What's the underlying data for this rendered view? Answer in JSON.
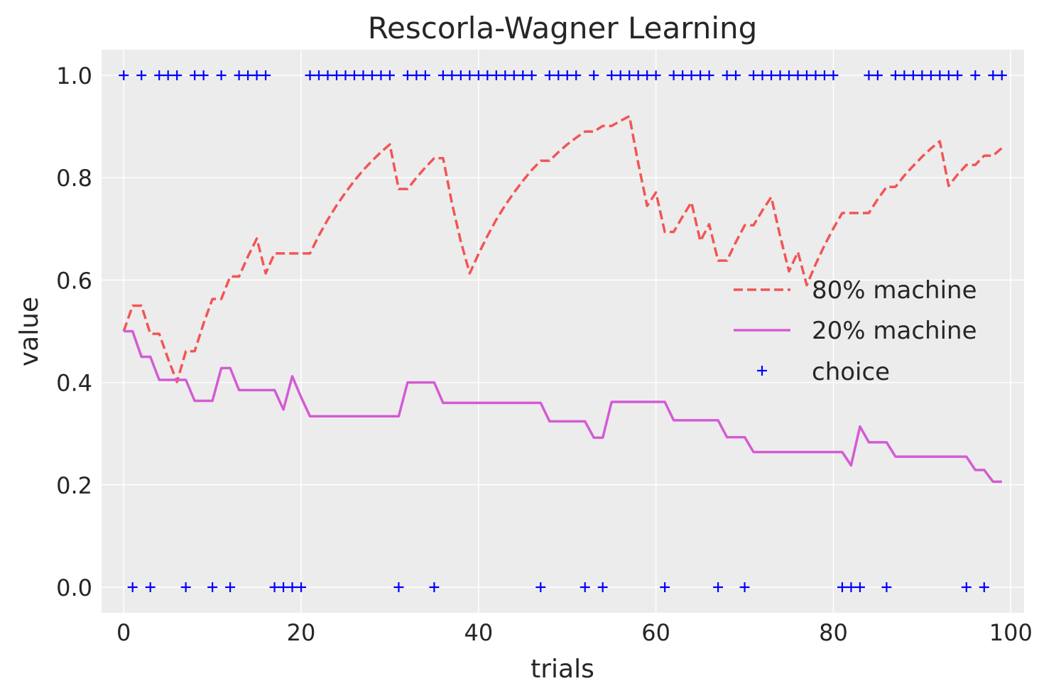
{
  "chart_data": {
    "type": "line",
    "title": "Rescorla-Wagner Learning",
    "xlabel": "trials",
    "ylabel": "value",
    "xlim": [
      -2.5,
      101.5
    ],
    "ylim": [
      -0.05,
      1.05
    ],
    "xticks": [
      0,
      20,
      40,
      60,
      80,
      100
    ],
    "yticks": [
      0.0,
      0.2,
      0.4,
      0.6,
      0.8,
      1.0
    ],
    "xtick_labels": [
      "0",
      "20",
      "40",
      "60",
      "80",
      "100"
    ],
    "ytick_labels": [
      "0.0",
      "0.2",
      "0.4",
      "0.6",
      "0.8",
      "1.0"
    ],
    "grid": true,
    "background": "#ececec",
    "legend_position": "center-right",
    "series": [
      {
        "name": "80% machine",
        "style": "dashed",
        "color": "#f25555",
        "x": [
          0,
          1,
          2,
          3,
          4,
          5,
          6,
          7,
          8,
          9,
          10,
          11,
          12,
          13,
          14,
          15,
          16,
          17,
          18,
          19,
          20,
          21,
          22,
          23,
          24,
          25,
          26,
          27,
          28,
          29,
          30,
          31,
          32,
          33,
          34,
          35,
          36,
          37,
          38,
          39,
          40,
          41,
          42,
          43,
          44,
          45,
          46,
          47,
          48,
          49,
          50,
          51,
          52,
          53,
          54,
          55,
          56,
          57,
          58,
          59,
          60,
          61,
          62,
          63,
          64,
          65,
          66,
          67,
          68,
          69,
          70,
          71,
          72,
          73,
          74,
          75,
          76,
          77,
          78,
          79,
          80,
          81,
          82,
          83,
          84,
          85,
          86,
          87,
          88,
          89,
          90,
          91,
          92,
          93,
          94,
          95,
          96,
          97,
          98,
          99
        ],
        "values": [
          0.5,
          0.55,
          0.55,
          0.495,
          0.495,
          0.446,
          0.401,
          0.461,
          0.461,
          0.515,
          0.563,
          0.563,
          0.607,
          0.607,
          0.646,
          0.681,
          0.613,
          0.652,
          0.652,
          0.652,
          0.652,
          0.652,
          0.687,
          0.718,
          0.746,
          0.771,
          0.794,
          0.815,
          0.833,
          0.85,
          0.865,
          0.778,
          0.778,
          0.8,
          0.82,
          0.838,
          0.838,
          0.75,
          0.675,
          0.613,
          0.651,
          0.686,
          0.718,
          0.746,
          0.771,
          0.794,
          0.815,
          0.833,
          0.833,
          0.85,
          0.865,
          0.878,
          0.89,
          0.89,
          0.901,
          0.901,
          0.911,
          0.92,
          0.828,
          0.745,
          0.771,
          0.694,
          0.694,
          0.724,
          0.752,
          0.676,
          0.709,
          0.638,
          0.638,
          0.674,
          0.707,
          0.707,
          0.736,
          0.762,
          0.686,
          0.617,
          0.655,
          0.59,
          0.631,
          0.668,
          0.701,
          0.731,
          0.731,
          0.731,
          0.731,
          0.758,
          0.782,
          0.782,
          0.804,
          0.823,
          0.841,
          0.857,
          0.871,
          0.784,
          0.806,
          0.825,
          0.825,
          0.843,
          0.843,
          0.858
        ]
      },
      {
        "name": "20% machine",
        "style": "solid",
        "color": "#d45bd4",
        "x": [
          0,
          1,
          2,
          3,
          4,
          5,
          6,
          7,
          8,
          9,
          10,
          11,
          12,
          13,
          14,
          15,
          16,
          17,
          18,
          19,
          20,
          21,
          22,
          23,
          24,
          25,
          26,
          27,
          28,
          29,
          30,
          31,
          32,
          33,
          34,
          35,
          36,
          37,
          38,
          39,
          40,
          41,
          42,
          43,
          44,
          45,
          46,
          47,
          48,
          49,
          50,
          51,
          52,
          53,
          54,
          55,
          56,
          57,
          58,
          59,
          60,
          61,
          62,
          63,
          64,
          65,
          66,
          67,
          68,
          69,
          70,
          71,
          72,
          73,
          74,
          75,
          76,
          77,
          78,
          79,
          80,
          81,
          82,
          83,
          84,
          85,
          86,
          87,
          88,
          89,
          90,
          91,
          92,
          93,
          94,
          95,
          96,
          97,
          98,
          99
        ],
        "values": [
          0.5,
          0.5,
          0.45,
          0.45,
          0.405,
          0.405,
          0.405,
          0.405,
          0.364,
          0.364,
          0.364,
          0.428,
          0.428,
          0.385,
          0.385,
          0.385,
          0.385,
          0.385,
          0.347,
          0.412,
          0.371,
          0.334,
          0.334,
          0.334,
          0.334,
          0.334,
          0.334,
          0.334,
          0.334,
          0.334,
          0.334,
          0.334,
          0.4,
          0.4,
          0.4,
          0.4,
          0.36,
          0.36,
          0.36,
          0.36,
          0.36,
          0.36,
          0.36,
          0.36,
          0.36,
          0.36,
          0.36,
          0.36,
          0.324,
          0.324,
          0.324,
          0.324,
          0.324,
          0.292,
          0.292,
          0.362,
          0.362,
          0.362,
          0.362,
          0.362,
          0.362,
          0.362,
          0.326,
          0.326,
          0.326,
          0.326,
          0.326,
          0.326,
          0.293,
          0.293,
          0.293,
          0.264,
          0.264,
          0.264,
          0.264,
          0.264,
          0.264,
          0.264,
          0.264,
          0.264,
          0.264,
          0.264,
          0.238,
          0.314,
          0.283,
          0.283,
          0.283,
          0.255,
          0.255,
          0.255,
          0.255,
          0.255,
          0.255,
          0.255,
          0.255,
          0.255,
          0.229,
          0.229,
          0.206,
          0.206
        ]
      },
      {
        "name": "choice",
        "style": "markers",
        "marker": "+",
        "color": "#0000ff",
        "x": [
          0,
          1,
          2,
          3,
          4,
          5,
          6,
          7,
          8,
          9,
          10,
          11,
          12,
          13,
          14,
          15,
          16,
          17,
          18,
          19,
          20,
          21,
          22,
          23,
          24,
          25,
          26,
          27,
          28,
          29,
          30,
          31,
          32,
          33,
          34,
          35,
          36,
          37,
          38,
          39,
          40,
          41,
          42,
          43,
          44,
          45,
          46,
          47,
          48,
          49,
          50,
          51,
          52,
          53,
          54,
          55,
          56,
          57,
          58,
          59,
          60,
          61,
          62,
          63,
          64,
          65,
          66,
          67,
          68,
          69,
          70,
          71,
          72,
          73,
          74,
          75,
          76,
          77,
          78,
          79,
          80,
          81,
          82,
          83,
          84,
          85,
          86,
          87,
          88,
          89,
          90,
          91,
          92,
          93,
          94,
          95,
          96,
          97,
          98,
          99
        ],
        "values": [
          1,
          0,
          1,
          0,
          1,
          1,
          1,
          0,
          1,
          1,
          0,
          1,
          0,
          1,
          1,
          1,
          1,
          0,
          0,
          0,
          0,
          1,
          1,
          1,
          1,
          1,
          1,
          1,
          1,
          1,
          1,
          0,
          1,
          1,
          1,
          0,
          1,
          1,
          1,
          1,
          1,
          1,
          1,
          1,
          1,
          1,
          1,
          0,
          1,
          1,
          1,
          1,
          0,
          1,
          0,
          1,
          1,
          1,
          1,
          1,
          1,
          0,
          1,
          1,
          1,
          1,
          1,
          0,
          1,
          1,
          0,
          1,
          1,
          1,
          1,
          1,
          1,
          1,
          1,
          1,
          1,
          0,
          0,
          0,
          1,
          1,
          0,
          1,
          1,
          1,
          1,
          1,
          1,
          1,
          1,
          0,
          1,
          0,
          1,
          1
        ]
      }
    ]
  }
}
